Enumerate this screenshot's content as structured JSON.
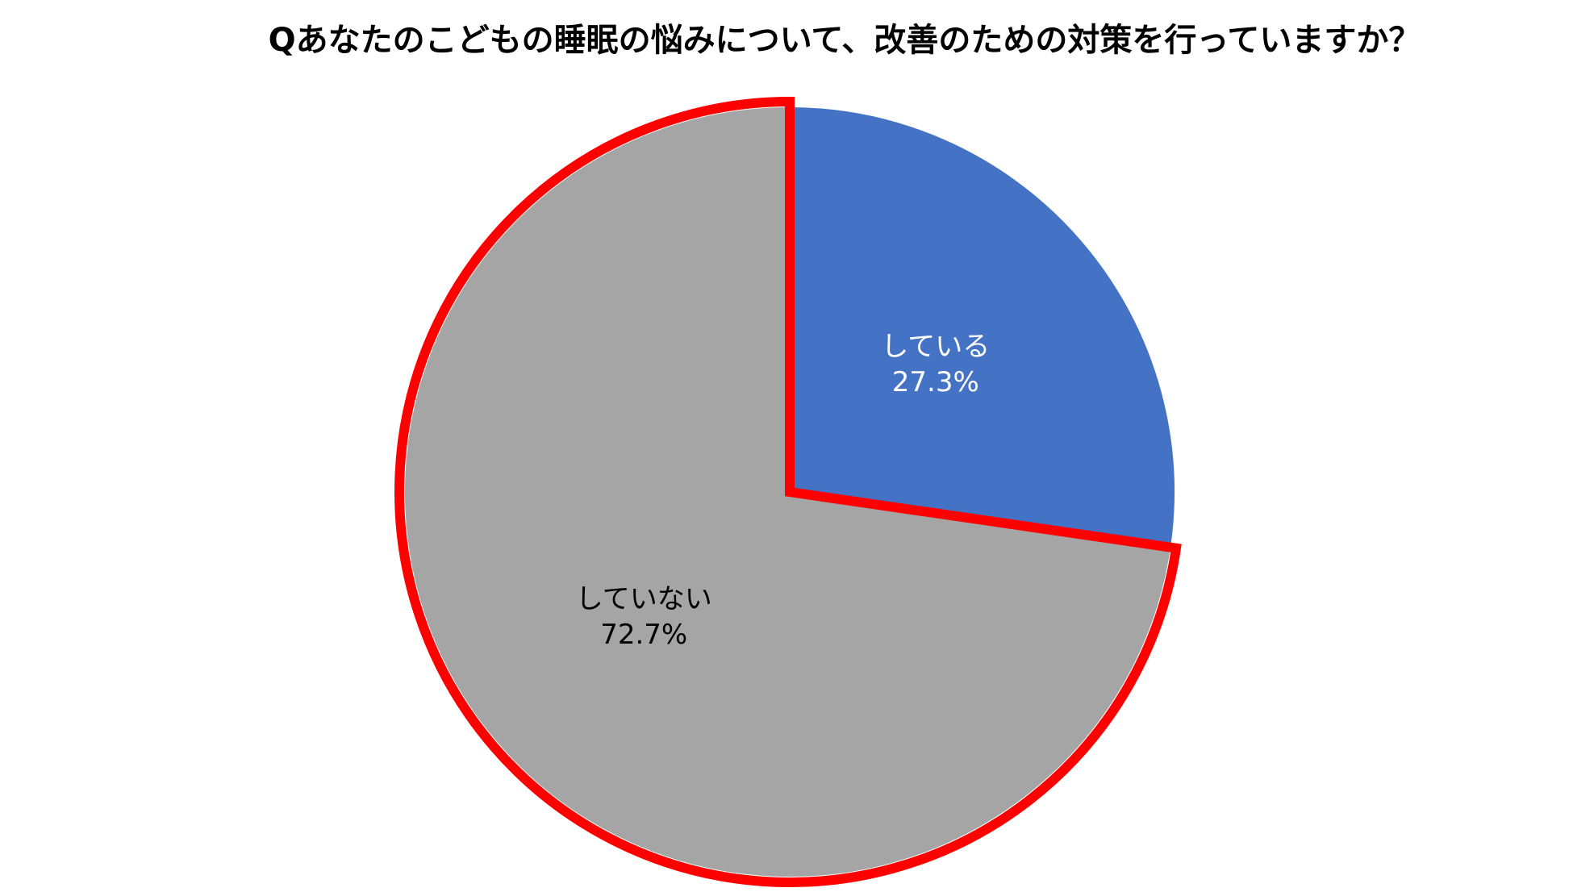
{
  "chart_data": {
    "type": "pie",
    "title": "Qあなたのこどもの睡眠の悩みについて、改善のための対策を行っていますか？",
    "categories": [
      "している",
      "していない"
    ],
    "values": [
      27.3,
      72.7
    ],
    "value_labels": [
      "27.3%",
      "72.7%"
    ],
    "colors": [
      "#4472c4",
      "#a5a5a5"
    ],
    "label_colors": [
      "#ffffff",
      "#000000"
    ]
  }
}
